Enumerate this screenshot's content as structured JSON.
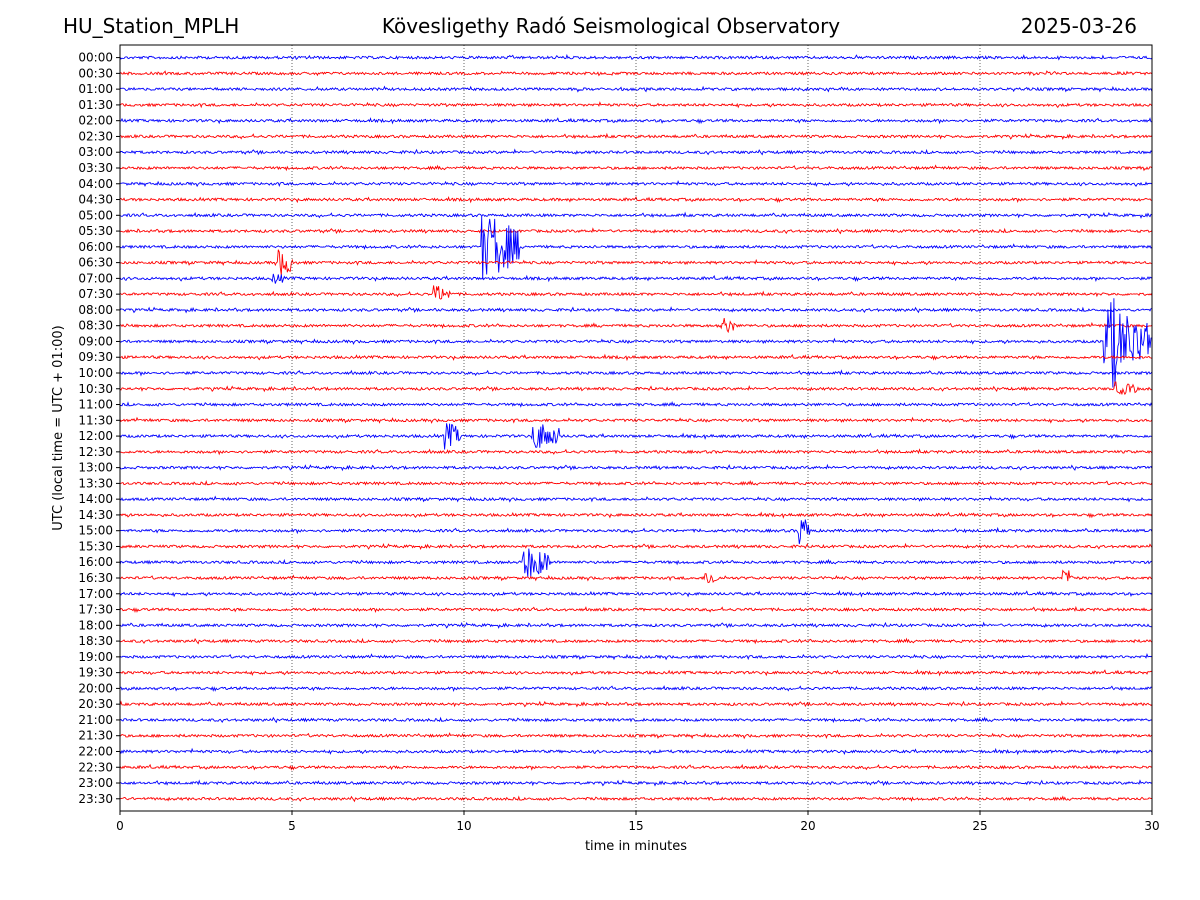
{
  "header": {
    "station": "HU_Station_MPLH",
    "observatory": "Kövesligethy Radó Seismological Observatory",
    "date": "2025-03-26"
  },
  "chart_data": {
    "type": "line",
    "title": "Kövesligethy Radó Seismological Observatory",
    "xlabel": "time in minutes",
    "ylabel": "UTC (local time = UTC + 01:00)",
    "xlim": [
      0,
      30
    ],
    "xticks": [
      0,
      5,
      10,
      15,
      20,
      25,
      30
    ],
    "grid": "vertical dotted at x ticks",
    "trace_colors": [
      "#0000ff",
      "#ff0000"
    ],
    "rows": [
      "00:00",
      "00:30",
      "01:00",
      "01:30",
      "02:00",
      "02:30",
      "03:00",
      "03:30",
      "04:00",
      "04:30",
      "05:00",
      "05:30",
      "06:00",
      "06:30",
      "07:00",
      "07:30",
      "08:00",
      "08:30",
      "09:00",
      "09:30",
      "10:00",
      "10:30",
      "11:00",
      "11:30",
      "12:00",
      "12:30",
      "13:00",
      "13:30",
      "14:00",
      "14:30",
      "15:00",
      "15:30",
      "16:00",
      "16:30",
      "17:00",
      "17:30",
      "18:00",
      "18:30",
      "19:00",
      "19:30",
      "20:00",
      "20:30",
      "21:00",
      "21:30",
      "22:00",
      "22:30",
      "23:00",
      "23:30"
    ],
    "events": [
      {
        "row": "06:00",
        "start": 10.5,
        "end": 11.6,
        "amp": 2.4
      },
      {
        "row": "06:00",
        "start": 10.8,
        "end": 11.0,
        "amp": 3.0
      },
      {
        "row": "06:30",
        "start": 4.6,
        "end": 5.1,
        "amp": 1.0
      },
      {
        "row": "07:00",
        "start": 4.4,
        "end": 4.8,
        "amp": 0.5
      },
      {
        "row": "07:30",
        "start": 9.1,
        "end": 9.6,
        "amp": 0.7
      },
      {
        "row": "08:30",
        "start": 17.4,
        "end": 17.9,
        "amp": 0.7
      },
      {
        "row": "09:00",
        "start": 28.6,
        "end": 30.0,
        "amp": 2.6
      },
      {
        "row": "09:00",
        "start": 28.8,
        "end": 29.1,
        "amp": 4.0
      },
      {
        "row": "10:30",
        "start": 28.9,
        "end": 29.6,
        "amp": 0.5
      },
      {
        "row": "12:00",
        "start": 9.4,
        "end": 9.9,
        "amp": 1.1
      },
      {
        "row": "12:00",
        "start": 12.0,
        "end": 12.8,
        "amp": 1.1
      },
      {
        "row": "15:00",
        "start": 19.7,
        "end": 20.1,
        "amp": 1.2
      },
      {
        "row": "16:00",
        "start": 11.7,
        "end": 12.5,
        "amp": 1.3
      },
      {
        "row": "16:30",
        "start": 17.0,
        "end": 17.4,
        "amp": 0.6
      },
      {
        "row": "16:30",
        "start": 27.4,
        "end": 27.7,
        "amp": 0.8
      }
    ]
  }
}
